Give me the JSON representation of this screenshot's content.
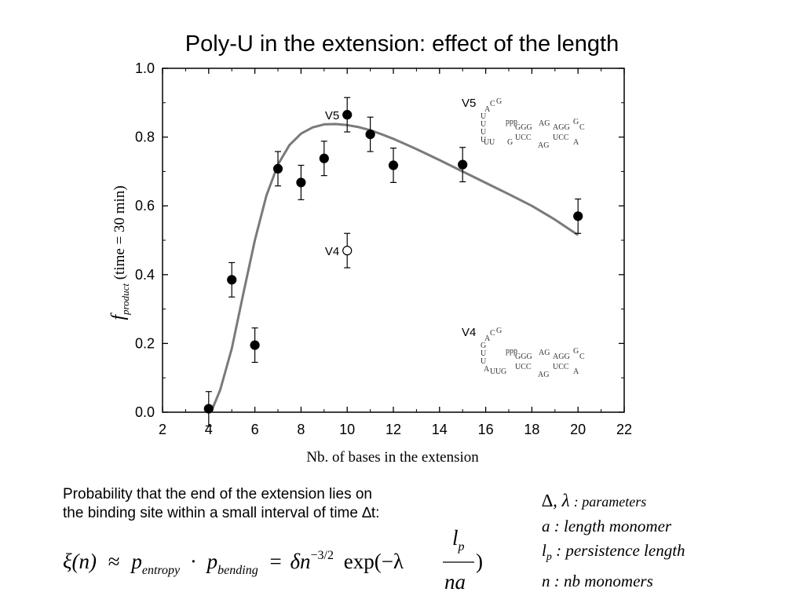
{
  "title": "Poly-U in the extension: effect of the length",
  "chart_data": {
    "type": "scatter",
    "title": "Poly-U in the extension: effect of the length",
    "xlabel": "Nb. of bases in the extension",
    "ylabel_symbol": "f",
    "ylabel_subscript": "product",
    "ylabel_suffix": "(time = 30 min)",
    "xlim": [
      2,
      22
    ],
    "ylim": [
      0.0,
      1.0
    ],
    "xticks": [
      "2",
      "4",
      "6",
      "8",
      "10",
      "12",
      "14",
      "16",
      "18",
      "20",
      "22"
    ],
    "yticks": [
      "0.0",
      "0.2",
      "0.4",
      "0.6",
      "0.8",
      "1.0"
    ],
    "series": [
      {
        "marker": "filled-circle",
        "points": [
          {
            "x": 4,
            "y": 0.01,
            "err": 0.05
          },
          {
            "x": 5,
            "y": 0.385,
            "err": 0.05
          },
          {
            "x": 6,
            "y": 0.195,
            "err": 0.05
          },
          {
            "x": 7,
            "y": 0.708,
            "err": 0.05
          },
          {
            "x": 8,
            "y": 0.668,
            "err": 0.05
          },
          {
            "x": 9,
            "y": 0.738,
            "err": 0.05
          },
          {
            "x": 10,
            "y": 0.865,
            "err": 0.05
          },
          {
            "x": 11,
            "y": 0.808,
            "err": 0.05
          },
          {
            "x": 12,
            "y": 0.718,
            "err": 0.05
          },
          {
            "x": 15,
            "y": 0.72,
            "err": 0.05
          },
          {
            "x": 20,
            "y": 0.57,
            "err": 0.05
          }
        ]
      },
      {
        "marker": "open-circle",
        "points": [
          {
            "x": 10,
            "y": 0.47,
            "err": 0.05
          }
        ]
      },
      {
        "marker": "fit-line",
        "x": [
          4.1,
          4.5,
          5,
          5.5,
          6,
          6.5,
          7,
          7.5,
          8,
          8.5,
          9,
          9.5,
          10,
          10.5,
          11,
          11.5,
          12,
          13,
          14,
          15,
          16,
          17,
          18,
          19,
          20
        ],
        "y": [
          0.0,
          0.065,
          0.185,
          0.345,
          0.5,
          0.63,
          0.72,
          0.777,
          0.81,
          0.828,
          0.837,
          0.838,
          0.835,
          0.829,
          0.82,
          0.808,
          0.795,
          0.765,
          0.733,
          0.7,
          0.667,
          0.634,
          0.6,
          0.56,
          0.515
        ]
      }
    ],
    "annotations": [
      {
        "text": "V5",
        "x": 10,
        "y": 0.865
      },
      {
        "text": "V4",
        "x": 10,
        "y": 0.47
      }
    ]
  },
  "structures": {
    "v5": {
      "name": "V5",
      "loop": [
        "A",
        "C",
        "G",
        "U",
        "U",
        "U",
        "U",
        "U",
        "U",
        "G"
      ],
      "top_strand": "GGG",
      "ppp": "ppp",
      "bottom_strand": "UCC",
      "ag_top": "AG",
      "agg": "AGG",
      "gc": "G",
      "c": "C",
      "ag_bottom": "AG",
      "ucc_a": "UCC",
      "a_end": "A"
    },
    "v4": {
      "name": "V4",
      "loop": [
        "A",
        "C",
        "G",
        "G",
        "U",
        "U",
        "A",
        "U",
        "U",
        "G"
      ],
      "top_strand": "GGG",
      "ppp": "ppp",
      "bottom_strand": "UCC",
      "ag_top": "AG",
      "agg": "AGG",
      "gc": "G",
      "c": "C",
      "ag_bottom": "AG",
      "ucc_a": "UCC",
      "a_end": "A"
    }
  },
  "description": {
    "line1": "Probability that the end of the extension lies on",
    "line2": "the binding site within a small interval of time ∆t:"
  },
  "formula": {
    "lhs": "ξ(n)",
    "approx": "≈",
    "p1": "p",
    "p1_sub": "entropy",
    "dot": "·",
    "p2": "p",
    "p2_sub": "bending",
    "eq": "=",
    "delta": "δ",
    "n": "n",
    "exp_sup": "−3/2",
    "exp": "exp(−λ",
    "num": "l",
    "num_sub": "p",
    "den": "na",
    "close": ")"
  },
  "params": {
    "p1_sym": "∆, λ",
    "p1_text": ": parameters",
    "p2": "a : length monomer",
    "p3_sym": "l",
    "p3_sub": "p",
    "p3_text": ": persistence length",
    "p4": "n : nb monomers"
  }
}
